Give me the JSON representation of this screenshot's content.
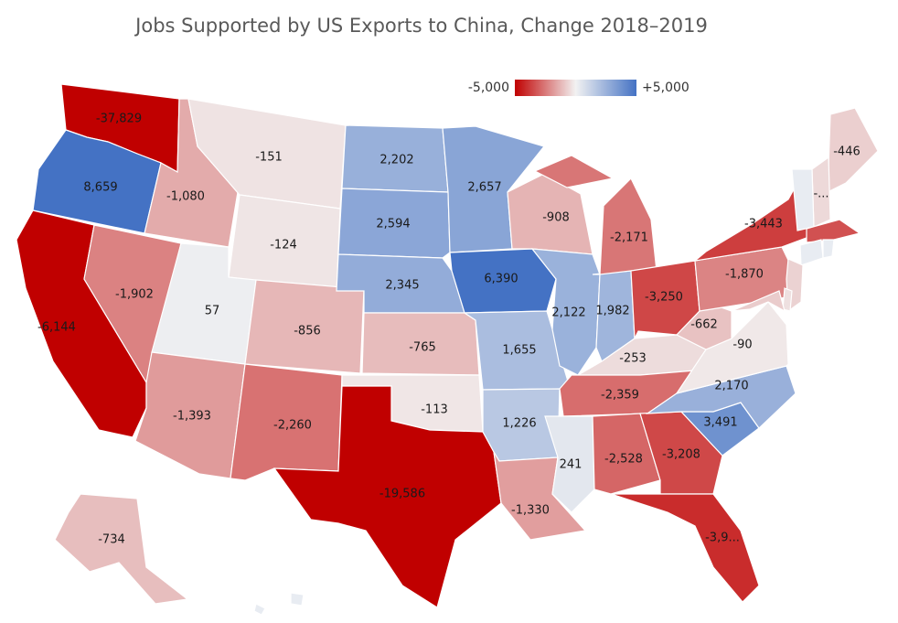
{
  "title": "Jobs Supported by US Exports to China, Change 2018–2019",
  "legend": {
    "min_label": "-5,000",
    "max_label": "+5,000",
    "min": -5000,
    "max": 5000,
    "low_color": "#c00000",
    "mid_color": "#f2f2f2",
    "high_color": "#4472c4"
  },
  "states": [
    {
      "code": "WA",
      "value": -37829,
      "label": "-37,829"
    },
    {
      "code": "OR",
      "value": 8659,
      "label": "8,659"
    },
    {
      "code": "CA",
      "value": -6144,
      "label": "-6,144"
    },
    {
      "code": "ID",
      "value": -1080,
      "label": "-1,080"
    },
    {
      "code": "NV",
      "value": -1902,
      "label": "-1,902"
    },
    {
      "code": "MT",
      "value": -151,
      "label": "-151"
    },
    {
      "code": "WY",
      "value": -124,
      "label": "-124"
    },
    {
      "code": "UT",
      "value": 57,
      "label": "57"
    },
    {
      "code": "AZ",
      "value": -1393,
      "label": "-1,393"
    },
    {
      "code": "CO",
      "value": -856,
      "label": "-856"
    },
    {
      "code": "NM",
      "value": -2260,
      "label": "-2,260"
    },
    {
      "code": "ND",
      "value": 2202,
      "label": "2,202"
    },
    {
      "code": "SD",
      "value": 2594,
      "label": "2,594"
    },
    {
      "code": "NE",
      "value": 2345,
      "label": "2,345"
    },
    {
      "code": "KS",
      "value": -765,
      "label": "-765"
    },
    {
      "code": "OK",
      "value": -113,
      "label": "-113"
    },
    {
      "code": "TX",
      "value": -19586,
      "label": "-19,586"
    },
    {
      "code": "MN",
      "value": 2657,
      "label": "2,657"
    },
    {
      "code": "IA",
      "value": 6390,
      "label": "6,390"
    },
    {
      "code": "MO",
      "value": 1655,
      "label": "1,655"
    },
    {
      "code": "AR",
      "value": 1226,
      "label": "1,226"
    },
    {
      "code": "LA",
      "value": -1330,
      "label": "-1,330"
    },
    {
      "code": "WI",
      "value": -908,
      "label": "-908"
    },
    {
      "code": "IL",
      "value": 2122,
      "label": "2,122"
    },
    {
      "code": "IN",
      "value": 1982,
      "label": "1,982"
    },
    {
      "code": "MI",
      "value": -2171,
      "label": "-2,171"
    },
    {
      "code": "OH",
      "value": -3250,
      "label": "-3,250"
    },
    {
      "code": "KY",
      "value": -253,
      "label": "-253"
    },
    {
      "code": "TN",
      "value": -2359,
      "label": "-2,359"
    },
    {
      "code": "MS",
      "value": 241,
      "label": "241"
    },
    {
      "code": "AL",
      "value": -2528,
      "label": "-2,528"
    },
    {
      "code": "GA",
      "value": -3208,
      "label": "-3,208"
    },
    {
      "code": "FL",
      "value": -3900,
      "label": "-3,9..."
    },
    {
      "code": "SC",
      "value": 3491,
      "label": "3,491"
    },
    {
      "code": "NC",
      "value": 2170,
      "label": "2,170"
    },
    {
      "code": "VA",
      "value": -90,
      "label": "-90"
    },
    {
      "code": "WV",
      "value": -662,
      "label": "-662"
    },
    {
      "code": "PA",
      "value": -1870,
      "label": "-1,870"
    },
    {
      "code": "NY",
      "value": -3443,
      "label": "-3,443"
    },
    {
      "code": "ME",
      "value": -446,
      "label": "-446"
    },
    {
      "code": "NH",
      "value": -300,
      "label": "-..."
    },
    {
      "code": "AK",
      "value": -734,
      "label": "-734"
    },
    {
      "code": "VT",
      "value": null,
      "label": ""
    },
    {
      "code": "MA",
      "value": -3000,
      "label": ""
    },
    {
      "code": "CT",
      "value": null,
      "label": ""
    },
    {
      "code": "RI",
      "value": null,
      "label": ""
    },
    {
      "code": "NJ",
      "value": -400,
      "label": ""
    },
    {
      "code": "DE",
      "value": -200,
      "label": ""
    },
    {
      "code": "MD",
      "value": -500,
      "label": ""
    },
    {
      "code": "HI",
      "value": null,
      "label": ""
    }
  ]
}
